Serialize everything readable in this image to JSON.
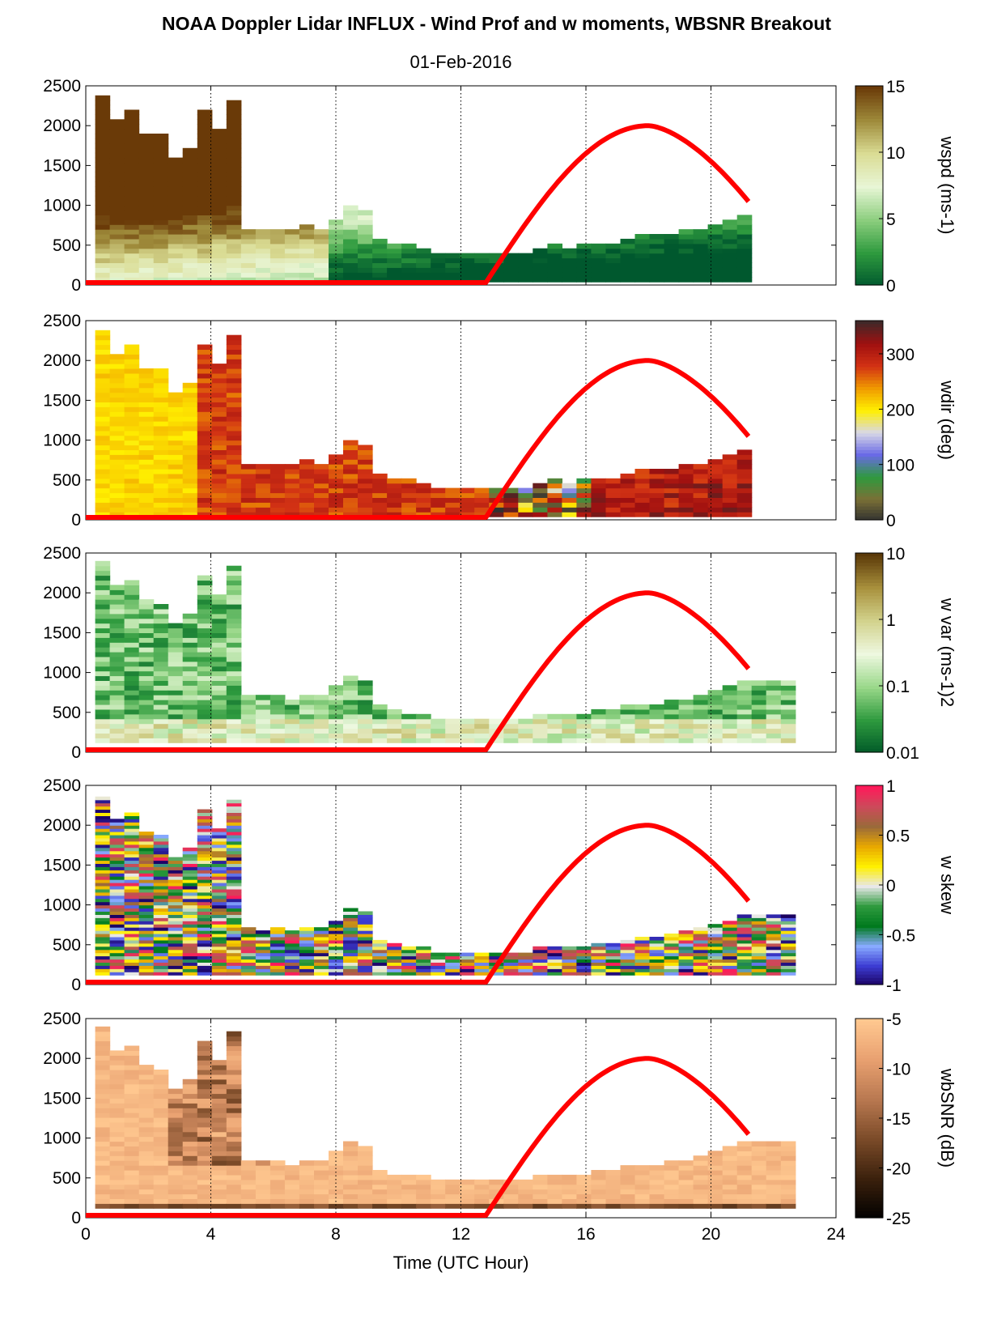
{
  "title": "NOAA Doppler Lidar INFLUX - Wind Prof and w moments, WBSNR Breakout",
  "date": "01-Feb-2016",
  "colors": {
    "sun_curve": "#ff0000",
    "wspd": [
      "#00582e",
      "#2e9a3e",
      "#8cce7e",
      "#e8f6d6",
      "#dadc94",
      "#9e8a3a",
      "#6a3a08"
    ],
    "wdir": [
      "#303030",
      "#7a7036",
      "#2e9a3e",
      "#6a6ae6",
      "#d8d8e6",
      "#fff000",
      "#f09a00",
      "#d23214",
      "#a01010",
      "#402828"
    ],
    "wvar": [
      "#005828",
      "#2e9a3e",
      "#9ad88a",
      "#eef8e0",
      "#d2d28c",
      "#a8903c",
      "#5a3808"
    ],
    "wskew": [
      "#1a0060",
      "#3c3cd2",
      "#88aaff",
      "#007a1e",
      "#2e9a3e",
      "#e8e8e8",
      "#fff000",
      "#e8a800",
      "#9a6a3a",
      "#cc4a5a",
      "#ff1a5a"
    ],
    "wbsnr": [
      "#000000",
      "#3a200c",
      "#7a4a28",
      "#b87850",
      "#e8a070",
      "#ffc890"
    ]
  },
  "chart_data": [
    {
      "type": "heatmap",
      "ylabel": "",
      "colorbar_label": "wspd (ms-1)",
      "ylim": [
        0,
        2500
      ],
      "xlim": [
        0,
        24
      ],
      "x_ticks": [
        0,
        4,
        8,
        12,
        16,
        20,
        24
      ],
      "y_ticks": [
        0,
        500,
        1000,
        1500,
        2000,
        2500
      ],
      "y_tick_labels": [
        "0",
        "500",
        "1000",
        "1500",
        "2000",
        "2500"
      ],
      "colorbar_ticks": [
        "15",
        "10",
        "5",
        "0"
      ],
      "clim": [
        0,
        15
      ],
      "data_top_m": [
        2350,
        2050,
        2150,
        1900,
        1850,
        1600,
        1700,
        2200,
        1950,
        2300,
        700,
        680,
        700,
        650,
        720,
        700,
        800,
        950,
        900,
        550,
        500,
        480,
        450,
        400,
        400,
        400,
        400,
        400,
        400,
        400,
        450,
        480,
        450,
        480,
        500,
        500,
        550,
        600,
        600,
        620,
        650,
        700,
        750,
        800,
        850
      ],
      "sun_elevation_curve": {
        "x": [
          0,
          12.8,
          18,
          21.3
        ],
        "y": [
          30,
          30,
          2000,
          1000
        ]
      }
    },
    {
      "type": "heatmap",
      "colorbar_label": "wdir (deg)",
      "ylim": [
        0,
        2500
      ],
      "xlim": [
        0,
        24
      ],
      "x_ticks": [
        0,
        4,
        8,
        12,
        16,
        20,
        24
      ],
      "y_ticks": [
        0,
        500,
        1000,
        1500,
        2000,
        2500
      ],
      "y_tick_labels": [
        "0",
        "500",
        "1000",
        "1500",
        "2000",
        "2500"
      ],
      "colorbar_ticks": [
        "300",
        "200",
        "100",
        "0"
      ],
      "clim": [
        0,
        360
      ],
      "sun_elevation_curve": {
        "x": [
          0,
          12.8,
          18,
          21.3
        ],
        "y": [
          30,
          30,
          2000,
          1000
        ]
      }
    },
    {
      "type": "heatmap",
      "colorbar_label": "w var (ms-1)2",
      "ylim": [
        0,
        2500
      ],
      "xlim": [
        0,
        24
      ],
      "x_ticks": [
        0,
        4,
        8,
        12,
        16,
        20,
        24
      ],
      "y_ticks": [
        0,
        500,
        1000,
        1500,
        2000,
        2500
      ],
      "y_tick_labels": [
        "0",
        "500",
        "1000",
        "1500",
        "2000",
        "2500"
      ],
      "colorbar_ticks": [
        "10",
        "1",
        "0.1",
        "0.01"
      ],
      "clim": [
        0.01,
        10
      ],
      "color_scale": "log",
      "sun_elevation_curve": {
        "x": [
          0,
          12.8,
          18,
          21.3
        ],
        "y": [
          30,
          30,
          2000,
          1000
        ]
      }
    },
    {
      "type": "heatmap",
      "colorbar_label": "w skew",
      "ylim": [
        0,
        2500
      ],
      "xlim": [
        0,
        24
      ],
      "x_ticks": [
        0,
        4,
        8,
        12,
        16,
        20,
        24
      ],
      "y_ticks": [
        0,
        500,
        1000,
        1500,
        2000,
        2500
      ],
      "y_tick_labels": [
        "0",
        "500",
        "1000",
        "1500",
        "2000",
        "2500"
      ],
      "colorbar_ticks": [
        "1",
        "0.5",
        "0",
        "-0.5",
        "-1"
      ],
      "clim": [
        -1,
        1
      ],
      "sun_elevation_curve": {
        "x": [
          0,
          12.8,
          18,
          21.3
        ],
        "y": [
          30,
          30,
          2000,
          1000
        ]
      }
    },
    {
      "type": "heatmap",
      "colorbar_label": "wbSNR (dB)",
      "xlabel": "Time (UTC Hour)",
      "ylim": [
        0,
        2500
      ],
      "xlim": [
        0,
        24
      ],
      "x_ticks": [
        0,
        4,
        8,
        12,
        16,
        20,
        24
      ],
      "x_tick_labels": [
        "0",
        "4",
        "8",
        "12",
        "16",
        "20",
        "24"
      ],
      "y_ticks": [
        0,
        500,
        1000,
        1500,
        2000,
        2500
      ],
      "y_tick_labels": [
        "0",
        "500",
        "1000",
        "1500",
        "2000",
        "2500"
      ],
      "colorbar_ticks": [
        "-5",
        "-10",
        "-15",
        "-20",
        "-25"
      ],
      "clim": [
        -25,
        -5
      ],
      "sun_elevation_curve": {
        "x": [
          0,
          12.8,
          18,
          21.3
        ],
        "y": [
          30,
          30,
          2000,
          1000
        ]
      }
    }
  ],
  "xlabel": "Time (UTC Hour)"
}
